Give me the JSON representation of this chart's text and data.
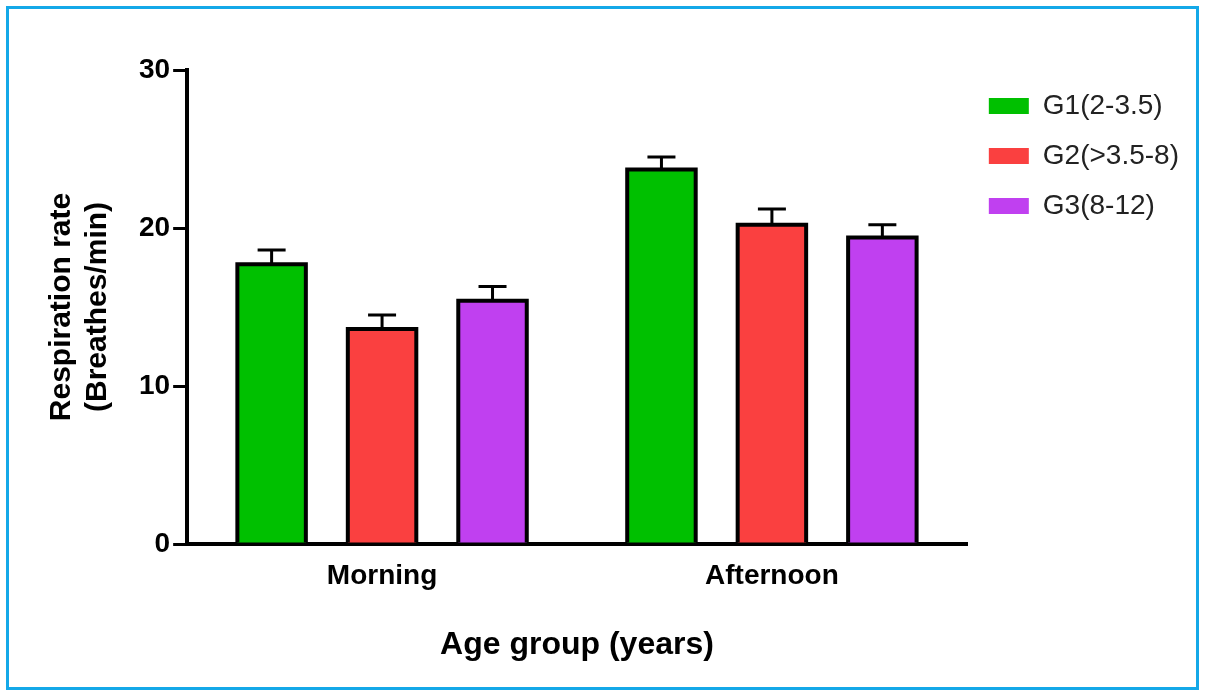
{
  "chart_data": {
    "type": "bar",
    "xlabel": "Age group (years)",
    "ylabel": "Respiration rate\n(Breathes/min)",
    "categories": [
      "Morning",
      "Afternoon"
    ],
    "series": [
      {
        "name": "G1(2-3.5)",
        "color": "#00c000",
        "values": [
          17.7,
          23.7
        ],
        "errors": [
          [
            17.7,
            18.6
          ],
          [
            23.7,
            24.5
          ]
        ]
      },
      {
        "name": "G2(>3.5-8)",
        "color": "#fa4040",
        "values": [
          13.6,
          20.2
        ],
        "errors": [
          [
            13.6,
            14.5
          ],
          [
            20.2,
            21.2
          ]
        ]
      },
      {
        "name": "G3(8-12)",
        "color": "#c040f0",
        "values": [
          15.4,
          19.4
        ],
        "errors": [
          [
            15.4,
            16.3
          ],
          [
            19.4,
            20.2
          ]
        ]
      }
    ],
    "ylim": [
      0,
      30
    ],
    "yticks": [
      0,
      10,
      20,
      30
    ],
    "grid": false,
    "legend": "top right"
  }
}
